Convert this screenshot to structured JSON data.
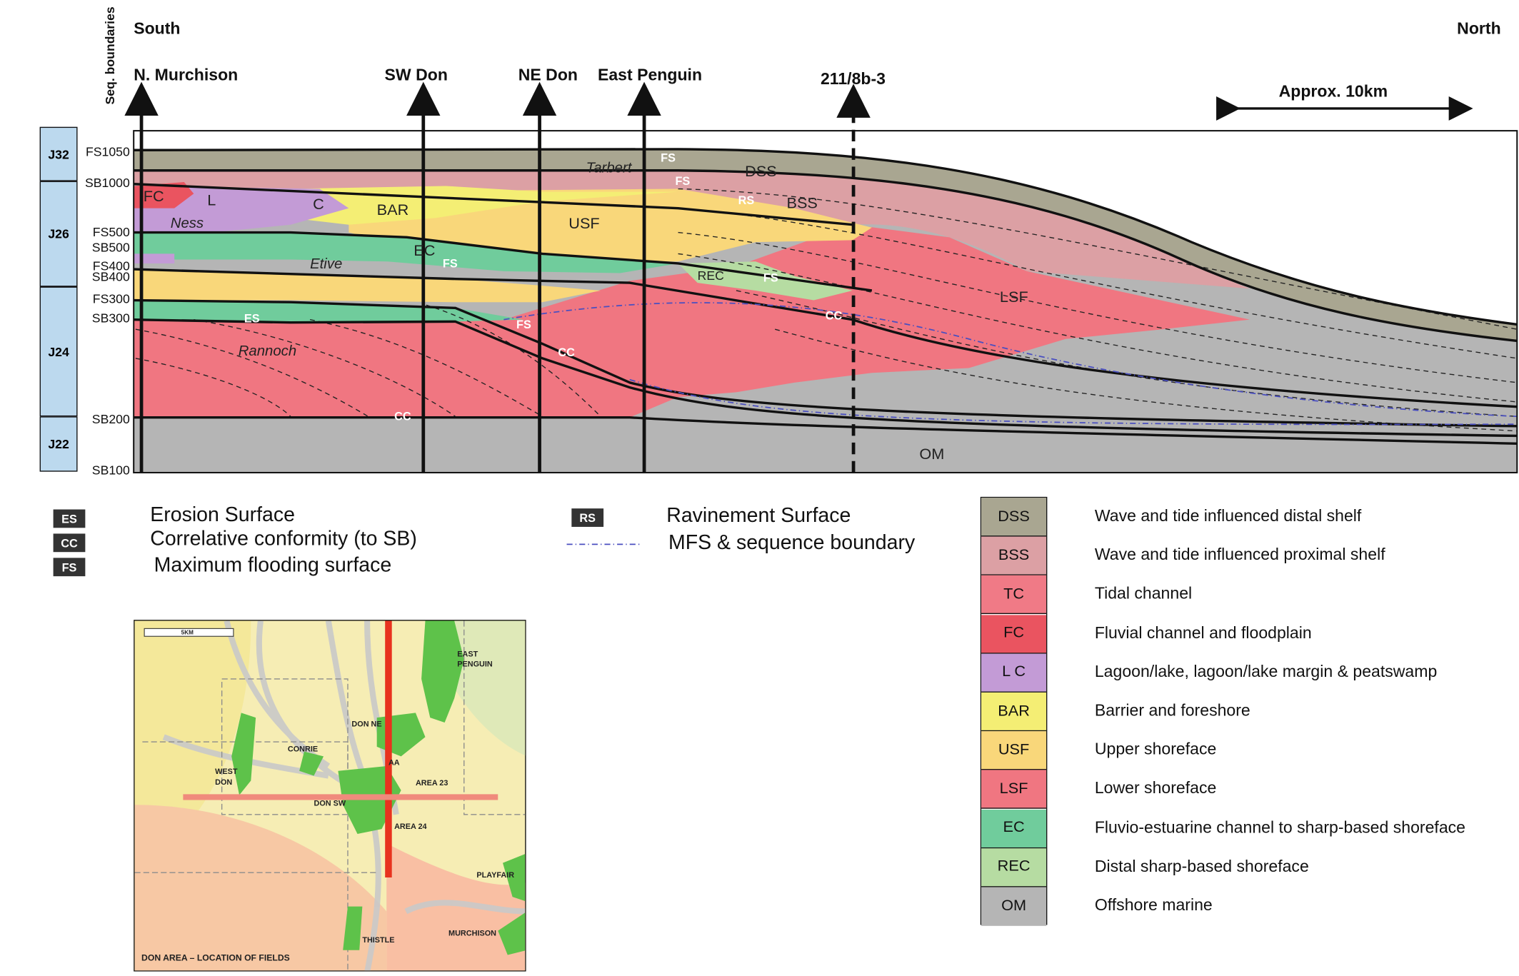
{
  "directions": {
    "south": "South",
    "north": "North"
  },
  "seq_label": "Seq. boundaries",
  "wells": [
    "N. Murchison",
    "SW Don",
    "NE Don",
    "East Penguin",
    "211/8b-3"
  ],
  "scale_label": "Approx. 10km",
  "zones": [
    "J32",
    "J26",
    "J24",
    "J22"
  ],
  "boundaries": [
    "FS1050",
    "SB1000",
    "FS500",
    "SB500",
    "FS400",
    "SB400",
    "FS300",
    "SB300",
    "SB200",
    "SB100"
  ],
  "formation_labels": {
    "tarbert": "Tarbert",
    "ness": "Ness",
    "etive": "Etive",
    "rannoch": "Rannoch"
  },
  "facies_labels": {
    "dss": "DSS",
    "bss": "BSS",
    "usf": "USF",
    "lsf": "LSF",
    "bar": "BAR",
    "ec": "EC",
    "rec": "REC",
    "om": "OM",
    "fc": "FC",
    "l": "L",
    "c": "C"
  },
  "surface_labels": {
    "fs": "FS",
    "es": "ES",
    "rs": "RS",
    "cc": "CC"
  },
  "symbols": [
    {
      "code": "ES",
      "text": "Erosion Surface"
    },
    {
      "code": "CC",
      "text": "Correlative conformity (to SB)"
    },
    {
      "code": "FS",
      "text": "Maximum flooding surface"
    },
    {
      "code": "RS",
      "text": "Ravinement Surface"
    }
  ],
  "mfs_text": "MFS & sequence boundary",
  "legend": [
    {
      "code": "DSS",
      "text": "Wave and tide influenced distal shelf",
      "color": "#a9a691"
    },
    {
      "code": "BSS",
      "text": "Wave and tide influenced proximal shelf",
      "color": "#dca0a4"
    },
    {
      "code": "TC",
      "text": "Tidal channel",
      "color": "#f07a86"
    },
    {
      "code": "FC",
      "text": "Fluvial channel and floodplain",
      "color": "#ea5460"
    },
    {
      "code": "L  C",
      "text": "Lagoon/lake, lagoon/lake margin & peatswamp",
      "color": "#c39bd6"
    },
    {
      "code": "BAR",
      "text": "Barrier and foreshore",
      "color": "#f4ee74"
    },
    {
      "code": "USF",
      "text": "Upper shoreface",
      "color": "#f9d77a"
    },
    {
      "code": "LSF",
      "text": "Lower shoreface",
      "color": "#f07681"
    },
    {
      "code": "EC",
      "text": "Fluvio-estuarine channel to sharp-based shoreface",
      "color": "#70cc9c"
    },
    {
      "code": "REC",
      "text": "Distal sharp-based shoreface",
      "color": "#b6dca2"
    },
    {
      "code": "OM",
      "text": "Offshore marine",
      "color": "#b5b5b5"
    }
  ],
  "map": {
    "scale": "5KM",
    "caption": "DON AREA – LOCATION OF FIELDS",
    "fields": [
      "EAST PENGUIN",
      "DON NE",
      "CONRIE",
      "WEST DON",
      "AREA 23",
      "DON SW",
      "AREA 24",
      "PLAYFAIR",
      "THISTLE",
      "MURCHISON"
    ],
    "area_label": "AA"
  },
  "colors": {
    "om": "#b5b5b5",
    "lsf": "#f07681",
    "usf": "#f9d77a",
    "bar": "#f4ee74",
    "bss": "#dca0a4",
    "dss": "#a9a691",
    "ec": "#70cc9c",
    "rec": "#b6dca2",
    "lc": "#c39bd6",
    "fc": "#ea5460",
    "zone": "#bcd9ee"
  }
}
